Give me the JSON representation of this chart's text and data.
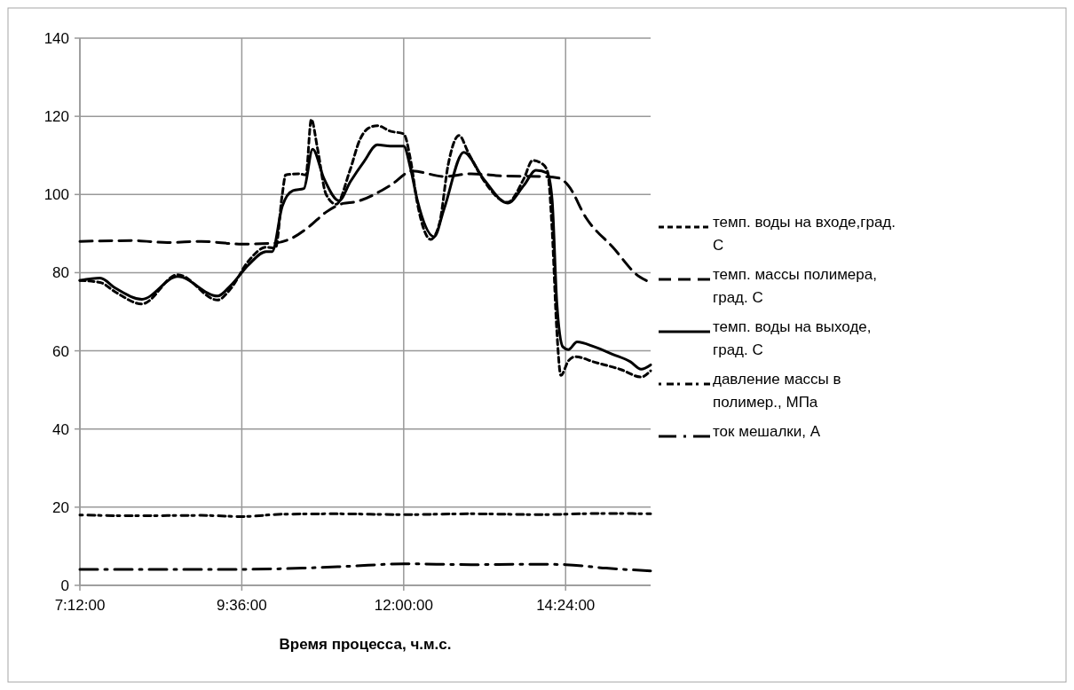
{
  "chart_data": {
    "type": "line",
    "xlabel": "Время процесса, ч.м.с.",
    "xlim": [
      7.2,
      15.66
    ],
    "xticks": [
      {
        "value": 7.2,
        "label": "7:12:00"
      },
      {
        "value": 9.6,
        "label": "9:36:00"
      },
      {
        "value": 12,
        "label": "12:00:00"
      },
      {
        "value": 14.4,
        "label": "14:24:00"
      }
    ],
    "ylim": [
      0,
      140
    ],
    "yticks": [
      0,
      20,
      40,
      60,
      80,
      100,
      120,
      140
    ],
    "grid": true,
    "legend": "right",
    "series": [
      {
        "name": "темп. воды на входе,град. С",
        "color": "#000000",
        "line_style": "dashed",
        "x": [
          7.2,
          7.5,
          7.73,
          8.12,
          8.65,
          9.24,
          9.44,
          9.7,
          9.96,
          10.1,
          10.2,
          10.25,
          10.45,
          10.55,
          10.63,
          10.72,
          10.85,
          11.0,
          11.2,
          11.35,
          11.48,
          11.61,
          11.8,
          12.0,
          12.1,
          12.2,
          12.4,
          12.53,
          12.66,
          12.82,
          12.96,
          13.19,
          13.54,
          13.78,
          13.91,
          14.04,
          14.13,
          14.2,
          14.27,
          14.33,
          14.44,
          14.54,
          14.83,
          15.22,
          15.52,
          15.66
        ],
        "values": [
          78,
          77.5,
          75,
          72,
          79.5,
          73,
          76,
          83,
          86.5,
          86.3,
          100,
          105,
          105.3,
          105,
          119.2,
          112,
          100,
          97.5,
          106,
          114,
          117,
          117.6,
          116.2,
          115.5,
          109,
          98,
          88.5,
          92.6,
          107.7,
          115.1,
          110.6,
          103.5,
          98,
          104,
          108.7,
          108,
          106,
          91,
          65,
          53.7,
          57.4,
          58.5,
          57.1,
          55.2,
          53.3,
          54.9
        ]
      },
      {
        "name": "темп. массы полимера, град. С",
        "color": "#000000",
        "line_style": "dashed",
        "x": [
          7.2,
          8.0,
          8.5,
          9.0,
          9.6,
          10.1,
          10.35,
          10.6,
          10.85,
          11.1,
          11.28,
          11.8,
          12.13,
          12.6,
          13.0,
          13.52,
          14.04,
          14.3,
          14.44,
          14.7,
          15.1,
          15.49,
          15.66
        ],
        "values": [
          88,
          88.2,
          87.7,
          88,
          87.3,
          87.6,
          88.9,
          91.8,
          95.5,
          97.7,
          98.1,
          102.3,
          106,
          104.6,
          105.3,
          104.7,
          104.6,
          104.2,
          102.3,
          94.1,
          86.5,
          79,
          77.5
        ]
      },
      {
        "name": "темп. воды на выходе, град. С",
        "color": "#000000",
        "line_style": "solid",
        "x": [
          7.2,
          7.5,
          7.73,
          8.12,
          8.65,
          9.24,
          9.44,
          9.7,
          9.96,
          10.05,
          10.2,
          10.36,
          10.52,
          10.65,
          10.82,
          11.04,
          11.21,
          11.41,
          11.61,
          11.8,
          12.0,
          12.1,
          12.2,
          12.45,
          12.6,
          12.89,
          13.19,
          13.54,
          13.78,
          13.96,
          14.13,
          14.2,
          14.27,
          14.36,
          14.44,
          14.57,
          14.83,
          15.1,
          15.36,
          15.52,
          15.66
        ],
        "values": [
          78,
          78.6,
          76,
          73.2,
          79,
          74,
          76.8,
          82,
          85.4,
          85.4,
          97,
          101,
          101.5,
          111.6,
          104,
          98.4,
          103.3,
          108.4,
          112.7,
          112.4,
          112.4,
          106.8,
          98.7,
          89.2,
          96.4,
          110.8,
          103.8,
          97.8,
          102.3,
          106.2,
          105.5,
          98.7,
          72.3,
          61,
          60.3,
          62.3,
          61,
          59.1,
          57.2,
          55.3,
          56.4
        ]
      },
      {
        "name": "давление массы в полимер., МПа",
        "color": "#000000",
        "line_style": "dotted",
        "x": [
          7.2,
          8.0,
          9.0,
          9.6,
          10.2,
          11.0,
          12.0,
          13.0,
          14.0,
          15.0,
          15.66
        ],
        "values": [
          18,
          17.8,
          17.9,
          17.6,
          18.2,
          18.3,
          18.1,
          18.3,
          18.1,
          18.4,
          18.3
        ]
      },
      {
        "name": "ток мешалки, А",
        "color": "#000000",
        "line_style": "dashed",
        "x": [
          7.2,
          8.5,
          9.6,
          10.5,
          11.2,
          12.0,
          13.0,
          14.0,
          14.4,
          15.0,
          15.66
        ],
        "values": [
          4.1,
          4.1,
          4.1,
          4.4,
          4.9,
          5.5,
          5.3,
          5.4,
          5.3,
          4.4,
          3.7
        ]
      }
    ]
  }
}
